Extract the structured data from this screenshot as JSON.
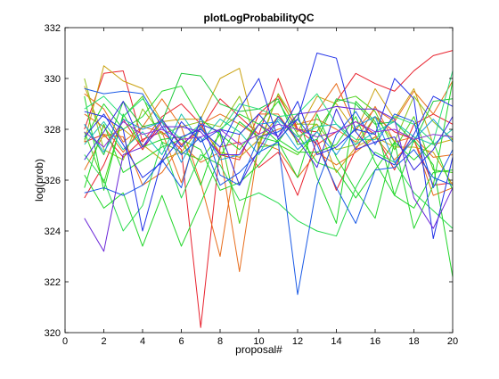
{
  "chart_data": {
    "type": "line",
    "title": "plotLogProbabilityQC",
    "xlabel": "proposal#",
    "ylabel": "log(prob)",
    "xlim": [
      0,
      20
    ],
    "ylim": [
      320,
      332
    ],
    "x_ticks": [
      0,
      2,
      4,
      6,
      8,
      10,
      12,
      14,
      16,
      18,
      20
    ],
    "x_tick_labels": [
      "0",
      "2",
      "4",
      "6",
      "8",
      "10",
      "12",
      "14",
      "16",
      "18",
      "20"
    ],
    "y_ticks": [
      320,
      322,
      324,
      326,
      328,
      330,
      332
    ],
    "y_tick_labels": [
      "320",
      "322",
      "324",
      "326",
      "328",
      "330",
      "332"
    ],
    "grid": false,
    "legend": "none",
    "x": [
      1,
      2,
      3,
      4,
      5,
      6,
      7,
      8,
      9,
      10,
      11,
      12,
      13,
      14,
      15,
      16,
      17,
      18,
      19,
      20
    ],
    "series": [
      {
        "color": "#e8222e",
        "values": [
          328.0,
          330.2,
          330.3,
          327.5,
          328.5,
          329.0,
          328.2,
          327.0,
          326.8,
          328.6,
          329.3,
          328.0,
          327.9,
          329.1,
          330.2,
          329.8,
          329.5,
          330.3,
          330.9,
          331.1
        ]
      },
      {
        "color": "#e8222e",
        "values": [
          327.5,
          327.8,
          326.9,
          327.6,
          327.9,
          327.2,
          320.2,
          327.3,
          327.5,
          326.5,
          327.1,
          325.4,
          327.6,
          325.6,
          327.2,
          328.5,
          327.9,
          327.6,
          325.8,
          325.9
        ]
      },
      {
        "color": "#e8222e",
        "values": [
          325.3,
          326.6,
          328.4,
          327.2,
          328.3,
          327.4,
          328.0,
          329.2,
          328.5,
          327.8,
          330.0,
          328.0,
          327.4,
          327.9,
          328.3,
          327.8,
          326.4,
          328.2,
          328.6,
          328.2
        ]
      },
      {
        "color": "#e86d1c",
        "values": [
          329.4,
          328.8,
          327.5,
          328.1,
          329.2,
          328.1,
          325.9,
          323.0,
          327.8,
          328.6,
          328.6,
          327.5,
          328.7,
          329.8,
          328.0,
          328.8,
          328.3,
          329.5,
          328.6,
          329.9
        ]
      },
      {
        "color": "#e86d1c",
        "values": [
          326.4,
          327.8,
          327.7,
          325.8,
          326.3,
          327.4,
          326.7,
          327.1,
          322.4,
          327.5,
          327.2,
          326.1,
          327.1,
          326.6,
          327.1,
          327.7,
          326.8,
          327.6,
          325.4,
          325.7
        ]
      },
      {
        "color": "#e86d1c",
        "values": [
          328.6,
          328.1,
          327.1,
          328.1,
          327.9,
          325.9,
          328.2,
          328.6,
          328.2,
          327.7,
          328.0,
          328.2,
          328.4,
          328.0,
          327.5,
          328.9,
          327.5,
          327.7,
          326.9,
          327.0
        ]
      },
      {
        "color": "#c9a10e",
        "values": [
          327.5,
          330.5,
          329.9,
          329.6,
          328.3,
          328.4,
          328.4,
          330.0,
          330.4,
          327.3,
          329.4,
          327.9,
          329.3,
          329.0,
          327.9,
          329.6,
          328.4,
          329.6,
          327.4,
          327.6
        ]
      },
      {
        "color": "#c9a10e",
        "values": [
          329.7,
          327.7,
          328.0,
          327.4,
          326.8,
          327.1,
          328.1,
          327.1,
          326.9,
          327.6,
          328.5,
          327.7,
          328.2,
          326.3,
          327.3,
          327.7,
          327.3,
          327.3,
          327.1,
          325.8
        ]
      },
      {
        "color": "#8ec21a",
        "values": [
          330.0,
          327.2,
          326.8,
          328.8,
          327.8,
          328.1,
          328.3,
          328.1,
          329.3,
          327.4,
          329.4,
          328.2,
          328.2,
          327.2,
          327.4,
          328.5,
          327.5,
          329.3,
          328.3,
          327.6
        ]
      },
      {
        "color": "#4cd21a",
        "values": [
          327.9,
          325.9,
          328.5,
          329.3,
          327.5,
          327.1,
          326.8,
          327.8,
          324.3,
          327.3,
          327.4,
          327.0,
          327.9,
          329.1,
          329.3,
          328.7,
          327.2,
          328.5,
          326.4,
          326.3
        ]
      },
      {
        "color": "#22d62a",
        "values": [
          329.3,
          325.6,
          328.6,
          327.3,
          327.6,
          327.7,
          325.8,
          328.0,
          328.6,
          328.2,
          327.5,
          328.6,
          326.1,
          324.3,
          329.1,
          328.3,
          325.4,
          327.6,
          326.6,
          322.2
        ]
      },
      {
        "color": "#22d62a",
        "values": [
          326.2,
          324.9,
          325.5,
          323.4,
          325.4,
          323.4,
          325.1,
          326.9,
          328.3,
          327.7,
          327.5,
          326.1,
          328.6,
          326.9,
          325.6,
          324.5,
          327.5,
          324.1,
          325.8,
          329.9
        ]
      },
      {
        "color": "#22d62a",
        "values": [
          327.6,
          329.0,
          328.0,
          328.5,
          329.5,
          329.7,
          328.4,
          327.8,
          327.2,
          328.2,
          329.1,
          327.8,
          326.7,
          326.4,
          325.3,
          326.4,
          327.5,
          326.8,
          327.5,
          325.6
        ]
      },
      {
        "color": "#22d62a",
        "values": [
          325.7,
          328.2,
          326.3,
          326.8,
          327.3,
          327.6,
          327.2,
          325.6,
          325.9,
          326.6,
          327.6,
          327.1,
          327.1,
          327.4,
          328.5,
          326.7,
          325.4,
          324.9,
          326.3,
          326.4
        ]
      },
      {
        "color": "#1ec83c",
        "values": [
          328.2,
          327.0,
          329.1,
          328.1,
          328.3,
          330.2,
          330.1,
          329.0,
          328.7,
          328.8,
          329.2,
          327.4,
          327.6,
          329.2,
          329.0,
          328.2,
          328.3,
          327.5,
          329.1,
          329.2
        ]
      },
      {
        "color": "#28da4e",
        "values": [
          327.0,
          326.0,
          324.0,
          325.0,
          327.5,
          325.3,
          327.0,
          326.6,
          325.2,
          325.5,
          325.1,
          324.4,
          324.0,
          323.8,
          325.7,
          327.1,
          326.7,
          325.5,
          324.8,
          324.1
        ]
      },
      {
        "color": "#2be07a",
        "values": [
          328.8,
          329.3,
          328.5,
          329.2,
          328.3,
          327.6,
          328.2,
          327.9,
          329.0,
          328.8,
          328.5,
          328.6,
          329.4,
          328.2,
          327.6,
          327.6,
          328.5,
          328.2,
          327.5,
          330.3
        ]
      },
      {
        "color": "#1fc4b0",
        "values": [
          327.4,
          328.3,
          327.2,
          327.9,
          327.0,
          328.6,
          327.5,
          328.4,
          327.9,
          327.0,
          328.4,
          327.7,
          328.1,
          328.2,
          327.4,
          327.9,
          328.3,
          327.7,
          327.4,
          328.0
        ]
      },
      {
        "color": "#1f9be0",
        "values": [
          328.2,
          327.1,
          328.4,
          328.0,
          328.3,
          326.7,
          328.1,
          326.8,
          327.0,
          328.2,
          328.3,
          327.2,
          327.9,
          327.0,
          328.1,
          328.5,
          326.7,
          327.6,
          328.4,
          327.5
        ]
      },
      {
        "color": "#1a5ae6",
        "values": [
          329.6,
          329.4,
          329.5,
          329.4,
          328.1,
          327.0,
          327.7,
          325.8,
          326.3,
          327.1,
          327.5,
          321.5,
          325.8,
          327.8,
          328.7,
          327.4,
          328.6,
          328.3,
          325.7,
          327.2
        ]
      },
      {
        "color": "#1a5ae6",
        "values": [
          325.5,
          325.7,
          325.4,
          325.8,
          326.8,
          325.7,
          328.5,
          326.2,
          325.8,
          327.7,
          327.9,
          328.4,
          327.4,
          325.7,
          324.3,
          326.4,
          326.5,
          327.2,
          326.1,
          325.8
        ]
      },
      {
        "color": "#2232e8",
        "values": [
          328.7,
          328.5,
          328.0,
          324.0,
          326.8,
          328.3,
          327.5,
          328.0,
          327.8,
          328.6,
          327.7,
          329.1,
          327.0,
          327.3,
          328.0,
          327.8,
          330.0,
          329.2,
          323.7,
          326.9
        ]
      },
      {
        "color": "#2232e8",
        "values": [
          327.7,
          328.6,
          327.4,
          326.1,
          326.7,
          327.7,
          328.0,
          327.3,
          328.8,
          330.0,
          327.6,
          328.4,
          331.0,
          330.8,
          327.9,
          327.0,
          326.6,
          327.8,
          329.3,
          328.9
        ]
      },
      {
        "color": "#3a2ae0",
        "values": [
          326.8,
          327.9,
          329.1,
          327.3,
          328.4,
          327.3,
          328.2,
          327.9,
          325.8,
          327.2,
          328.5,
          327.6,
          326.5,
          328.8,
          327.2,
          327.5,
          327.7,
          326.4,
          327.2,
          328.5
        ]
      },
      {
        "color": "#6a24d8",
        "values": [
          324.5,
          323.2,
          327.0,
          327.3,
          328.1,
          328.1,
          327.9,
          327.0,
          327.0,
          328.2,
          327.7,
          328.6,
          328.7,
          328.9,
          328.8,
          328.8,
          328.4,
          325.3,
          324.1,
          325.7
        ]
      },
      {
        "color": "#8b2fd6",
        "values": [
          327.9,
          327.3,
          328.3,
          327.8,
          328.0,
          327.6,
          327.7,
          328.0,
          327.4,
          327.8,
          328.2,
          328.0,
          327.7,
          327.9,
          328.3,
          327.9,
          328.0,
          327.6,
          327.8,
          327.7
        ]
      }
    ]
  }
}
